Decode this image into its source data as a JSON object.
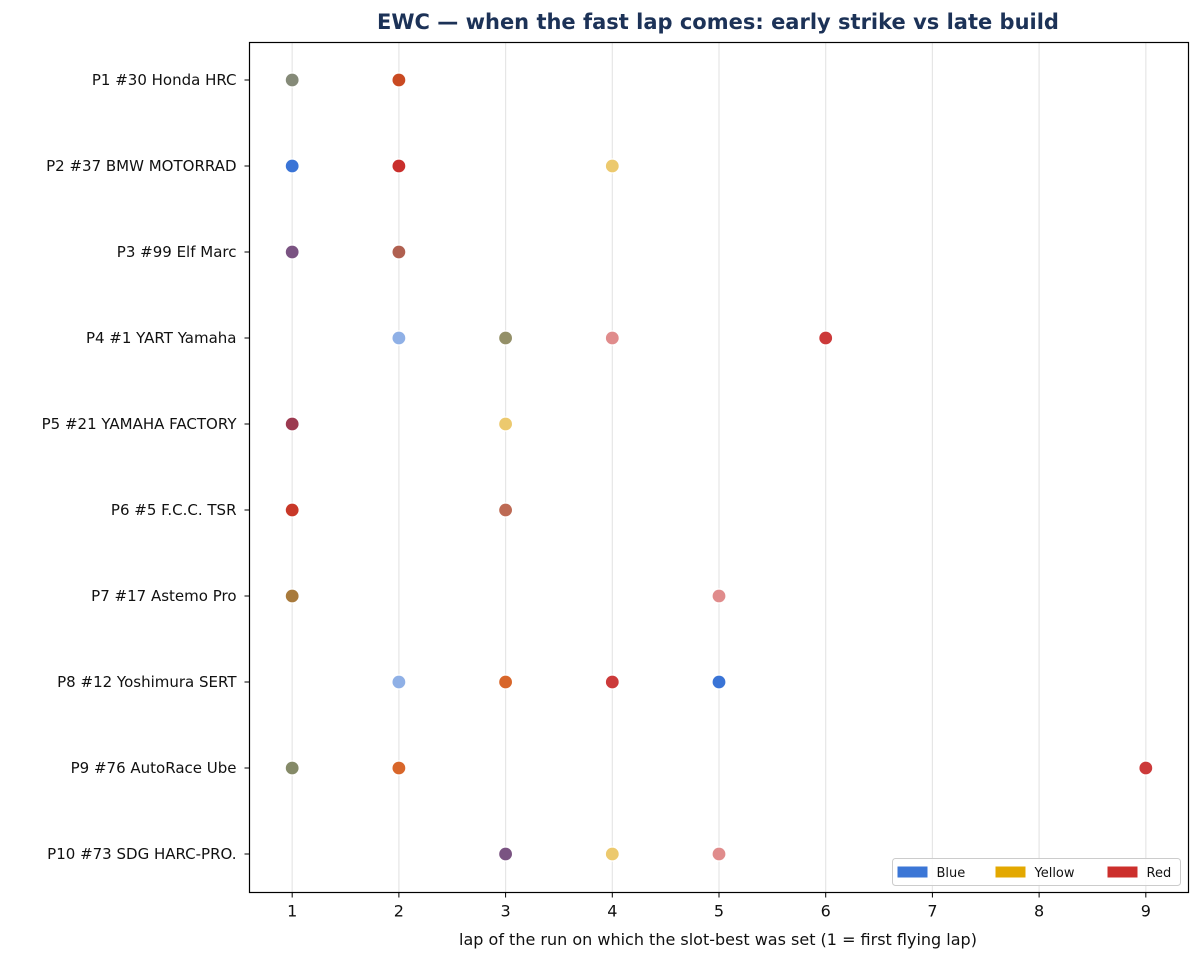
{
  "chart_data": {
    "type": "scatter",
    "title": "EWC — when the fast lap comes: early strike vs late build",
    "xlabel": "lap of the run on which the slot-best was set (1 = first flying lap)",
    "ylabel": "",
    "xlim": [
      0.6,
      9.4
    ],
    "xticks": [
      "1",
      "2",
      "3",
      "4",
      "5",
      "6",
      "7",
      "8",
      "9"
    ],
    "grid": "vertical",
    "legend_position": "bottom-right",
    "legend": [
      {
        "label": "Blue",
        "color": "#3b76d6"
      },
      {
        "label": "Yellow",
        "color": "#e3a800"
      },
      {
        "label": "Red",
        "color": "#cc2f2c"
      }
    ],
    "categories": [
      "P1 #30 Honda HRC",
      "P2 #37 BMW MOTORRAD",
      "P3 #99 Elf Marc",
      "P4 #1 YART Yamaha",
      "P5 #21 YAMAHA FACTORY",
      "P6 #5 F.C.C. TSR",
      "P7 #17 Astemo Pro",
      "P8 #12 Yoshimura SERT",
      "P9 #76 AutoRace Ube",
      "P10 #73 SDG HARC-PRO."
    ],
    "points": [
      {
        "row": 0,
        "x": 1,
        "color": "#858a78"
      },
      {
        "row": 0,
        "x": 2,
        "color": "#c94a22"
      },
      {
        "row": 1,
        "x": 1,
        "color": "#3a74d6"
      },
      {
        "row": 1,
        "x": 2,
        "color": "#c92f2c"
      },
      {
        "row": 1,
        "x": 4,
        "color": "#ecc96e"
      },
      {
        "row": 2,
        "x": 1,
        "color": "#7a5382"
      },
      {
        "row": 2,
        "x": 2,
        "color": "#b06050"
      },
      {
        "row": 3,
        "x": 2,
        "color": "#8fb0e6"
      },
      {
        "row": 3,
        "x": 3,
        "color": "#949068"
      },
      {
        "row": 3,
        "x": 4,
        "color": "#e08c8c"
      },
      {
        "row": 3,
        "x": 6,
        "color": "#cc3a3a"
      },
      {
        "row": 4,
        "x": 1,
        "color": "#9c3a50"
      },
      {
        "row": 4,
        "x": 3,
        "color": "#ecc96e"
      },
      {
        "row": 5,
        "x": 1,
        "color": "#c83828"
      },
      {
        "row": 5,
        "x": 3,
        "color": "#bd6a54"
      },
      {
        "row": 6,
        "x": 1,
        "color": "#a87a3c"
      },
      {
        "row": 6,
        "x": 5,
        "color": "#e08c8c"
      },
      {
        "row": 7,
        "x": 2,
        "color": "#8fb0e6"
      },
      {
        "row": 7,
        "x": 3,
        "color": "#d8662a"
      },
      {
        "row": 7,
        "x": 4,
        "color": "#cc3a3a"
      },
      {
        "row": 7,
        "x": 5,
        "color": "#3a74d6"
      },
      {
        "row": 8,
        "x": 1,
        "color": "#858a68"
      },
      {
        "row": 8,
        "x": 2,
        "color": "#d8662a"
      },
      {
        "row": 8,
        "x": 9,
        "color": "#cc3a3a"
      },
      {
        "row": 9,
        "x": 3,
        "color": "#7a5382"
      },
      {
        "row": 9,
        "x": 4,
        "color": "#ecc96e"
      },
      {
        "row": 9,
        "x": 5,
        "color": "#e08c8c"
      }
    ]
  }
}
